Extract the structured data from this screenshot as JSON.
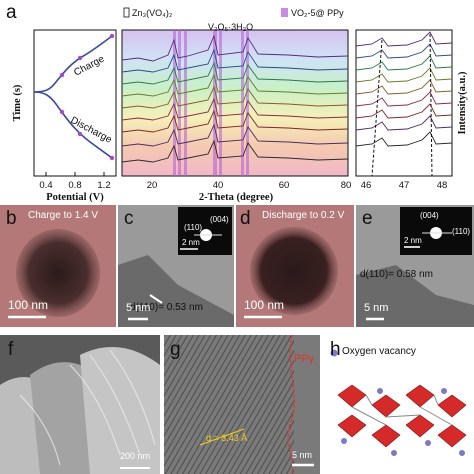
{
  "labels": {
    "a": "a",
    "b": "b",
    "c": "c",
    "d": "d",
    "e": "e",
    "f": "f",
    "g": "g",
    "h": "h"
  },
  "panel_a": {
    "left_plot": {
      "ylabel": "Time (s)",
      "xlabel": "Potential (V)",
      "xticks": [
        "0.4",
        "0.8",
        "1.2"
      ],
      "charge_label": "Charge",
      "discharge_label": "Discharge"
    },
    "mid_plot": {
      "xlabel": "2-Theta (degree)",
      "xticks": [
        "20",
        "40",
        "60",
        "80"
      ],
      "legend_zn": "Zn₃(VO₄)₂",
      "legend_v2o5": "V₂O₅·3H₂O",
      "legend_ppy": "VO₂-5@ PPy"
    },
    "right_plot": {
      "ylabel": "Intensity(a.u.)",
      "xticks": [
        "46",
        "47",
        "48"
      ]
    }
  },
  "panel_b": {
    "caption": "Charge to 1.4 V",
    "scale": "100 nm"
  },
  "panel_c": {
    "d_label": "d(110)= 0.53 nm",
    "scale": "5 nm",
    "inset_scale": "2 nm",
    "spot1": "(004)",
    "spot2": "(110)"
  },
  "panel_d": {
    "caption": "Discharge to 0.2 V",
    "scale": "100 nm"
  },
  "panel_e": {
    "d_label": "d(110)= 0.58 nm",
    "scale": "5 nm",
    "inset_scale": "2 nm",
    "spot1": "(004)",
    "spot2": "(110)"
  },
  "panel_f": {
    "scale": "200 nm"
  },
  "panel_g": {
    "ppy_label": "PPy",
    "d_label": "d = 3.43 Å",
    "scale": "5 nm"
  },
  "panel_h": {
    "legend": "Oxygen vacancy"
  },
  "colors": {
    "charge_curve": "#3b4a9e",
    "ppy_band": "#b45bd6",
    "tem_bg": "#b47878",
    "ppy_text": "#e0332b",
    "vacancy": "#7d78c8",
    "octahedra": "#d42a2a"
  }
}
